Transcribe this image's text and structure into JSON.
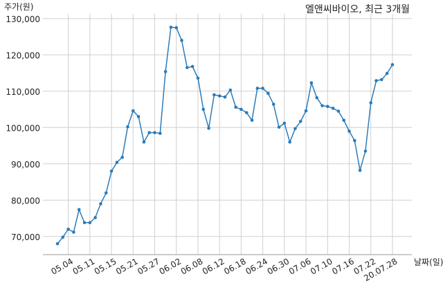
{
  "chart_data": {
    "type": "line",
    "title": "엘앤씨바이오, 최근 3개월",
    "y_label": "주가(원)",
    "x_label": "날짜(일)",
    "categories": [
      null,
      null,
      "05.04",
      null,
      null,
      null,
      "05.11",
      null,
      null,
      null,
      "05.15",
      null,
      null,
      null,
      "05.21",
      null,
      null,
      null,
      "05.27",
      null,
      null,
      null,
      "06.02",
      null,
      null,
      null,
      "06.08",
      null,
      null,
      null,
      "06.12",
      null,
      null,
      null,
      "06.18",
      null,
      null,
      null,
      "06.24",
      null,
      null,
      null,
      "06.30",
      null,
      null,
      null,
      "07.06",
      null,
      null,
      null,
      "07.10",
      null,
      null,
      null,
      "07.16",
      null,
      null,
      null,
      "07.22",
      null,
      null,
      null,
      "20.07.28"
    ],
    "series": [
      {
        "name": "주가",
        "color": "#2b7bb9",
        "values": [
          68000,
          69800,
          72000,
          71200,
          77400,
          73800,
          73800,
          75200,
          79000,
          82000,
          88000,
          90400,
          91800,
          100200,
          104600,
          103000,
          96000,
          98600,
          98600,
          98400,
          115400,
          127600,
          127500,
          124000,
          116500,
          116800,
          113600,
          105000,
          99800,
          109000,
          108700,
          108400,
          110300,
          105600,
          105000,
          104100,
          102000,
          110800,
          110800,
          109400,
          106400,
          100100,
          101200,
          96000,
          99700,
          101700,
          104600,
          112300,
          108200,
          106000,
          105800,
          105300,
          104500,
          102000,
          99000,
          96400,
          88200,
          93500,
          106800,
          112900,
          113200,
          114900,
          117300
        ]
      }
    ],
    "ylim": [
      65000,
      131300
    ],
    "yticks": [
      {
        "value": 70000,
        "label": "70,000"
      },
      {
        "value": 80000,
        "label": "80,000"
      },
      {
        "value": 90000,
        "label": "90,000"
      },
      {
        "value": 100000,
        "label": "100,000"
      },
      {
        "value": 110000,
        "label": "110,000"
      },
      {
        "value": 120000,
        "label": "120,000"
      },
      {
        "value": 130000,
        "label": "130,000"
      }
    ],
    "grid": true
  }
}
